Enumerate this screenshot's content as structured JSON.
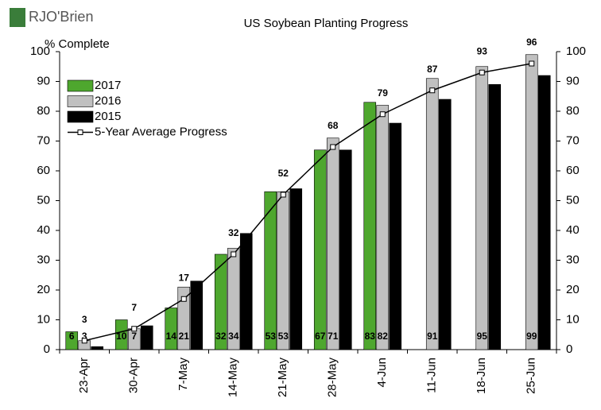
{
  "chart_data": {
    "type": "bar",
    "title": "US Soybean Planting Progress",
    "logo": "RJO'Brien",
    "y_label": "% Complete",
    "categories": [
      "23-Apr",
      "30-Apr",
      "7-May",
      "14-May",
      "21-May",
      "28-May",
      "4-Jun",
      "11-Jun",
      "18-Jun",
      "25-Jun"
    ],
    "series": [
      {
        "name": "2017",
        "type": "bar",
        "color": "#4ea72e",
        "data_labels": true,
        "values": [
          6,
          10,
          14,
          32,
          53,
          67,
          83,
          null,
          null,
          null
        ]
      },
      {
        "name": "2016",
        "type": "bar",
        "color": "#c0c0c0",
        "data_labels": true,
        "values": [
          3,
          7,
          21,
          34,
          53,
          71,
          82,
          91,
          95,
          99
        ]
      },
      {
        "name": "2015",
        "type": "bar",
        "color": "#000000",
        "data_labels": false,
        "values": [
          1,
          8,
          23,
          39,
          54,
          67,
          76,
          84,
          89,
          92
        ]
      },
      {
        "name": "5-Year Average Progress",
        "type": "line",
        "color": "#000000",
        "data_labels": true,
        "values": [
          3,
          7,
          17,
          32,
          52,
          68,
          79,
          87,
          93,
          96
        ]
      }
    ],
    "ylim": [
      0,
      100
    ],
    "yticks": [
      0,
      10,
      20,
      30,
      40,
      50,
      60,
      70,
      80,
      90,
      100
    ],
    "y2lim": [
      0,
      100
    ],
    "y2ticks": [
      0,
      10,
      20,
      30,
      40,
      50,
      60,
      70,
      80,
      90,
      100
    ],
    "grid": false,
    "legend": "top-left"
  }
}
